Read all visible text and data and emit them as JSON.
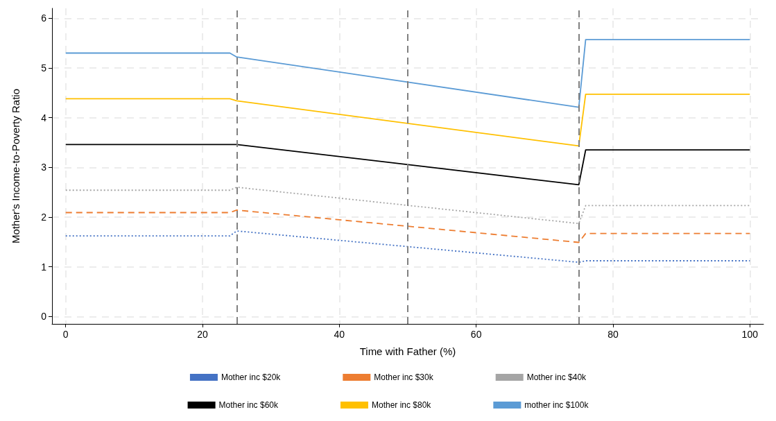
{
  "chart_data": {
    "type": "line",
    "xlabel": "Time with Father (%)",
    "ylabel": "Mother's Income-to-Poverty Ratio",
    "x": [
      0,
      24,
      25,
      75,
      76,
      100
    ],
    "series": [
      {
        "name": "Mother inc $20k",
        "color": "#4472c4",
        "line_style": "dotted",
        "values": [
          1.62,
          1.62,
          1.72,
          1.09,
          1.12,
          1.12
        ]
      },
      {
        "name": "Mother inc $30k",
        "color": "#ed7d31",
        "line_style": "dashed",
        "values": [
          2.09,
          2.09,
          2.14,
          1.49,
          1.67,
          1.67
        ]
      },
      {
        "name": "Mother inc $40k",
        "color": "#a5a5a5",
        "line_style": "dotted",
        "values": [
          2.54,
          2.54,
          2.6,
          1.87,
          2.23,
          2.23
        ]
      },
      {
        "name": "Mother inc $60k",
        "color": "#000000",
        "line_style": "solid",
        "values": [
          3.46,
          3.46,
          3.46,
          2.65,
          3.35,
          3.35
        ]
      },
      {
        "name": "Mother inc $80k",
        "color": "#ffc000",
        "line_style": "solid",
        "values": [
          4.38,
          4.38,
          4.34,
          3.43,
          4.47,
          4.47
        ]
      },
      {
        "name": "mother inc $100k",
        "color": "#5b9bd5",
        "line_style": "solid",
        "values": [
          5.3,
          5.3,
          5.22,
          4.21,
          5.57,
          5.57
        ]
      }
    ],
    "xlim": [
      -2,
      102
    ],
    "xticks": [
      0,
      20,
      40,
      60,
      80,
      100
    ],
    "ylim": [
      -0.15,
      6.2
    ],
    "yticks": [
      0,
      1,
      2,
      3,
      4,
      5,
      6
    ],
    "ref_lines": [
      {
        "axis": "x",
        "value": 25,
        "color": "#808080",
        "line_style": "dashed"
      },
      {
        "axis": "x",
        "value": 50,
        "color": "#808080",
        "line_style": "dashed"
      },
      {
        "axis": "x",
        "value": 75,
        "color": "#808080",
        "line_style": "dashed"
      }
    ],
    "grid": true,
    "legend": "bottom",
    "marker": "none"
  }
}
